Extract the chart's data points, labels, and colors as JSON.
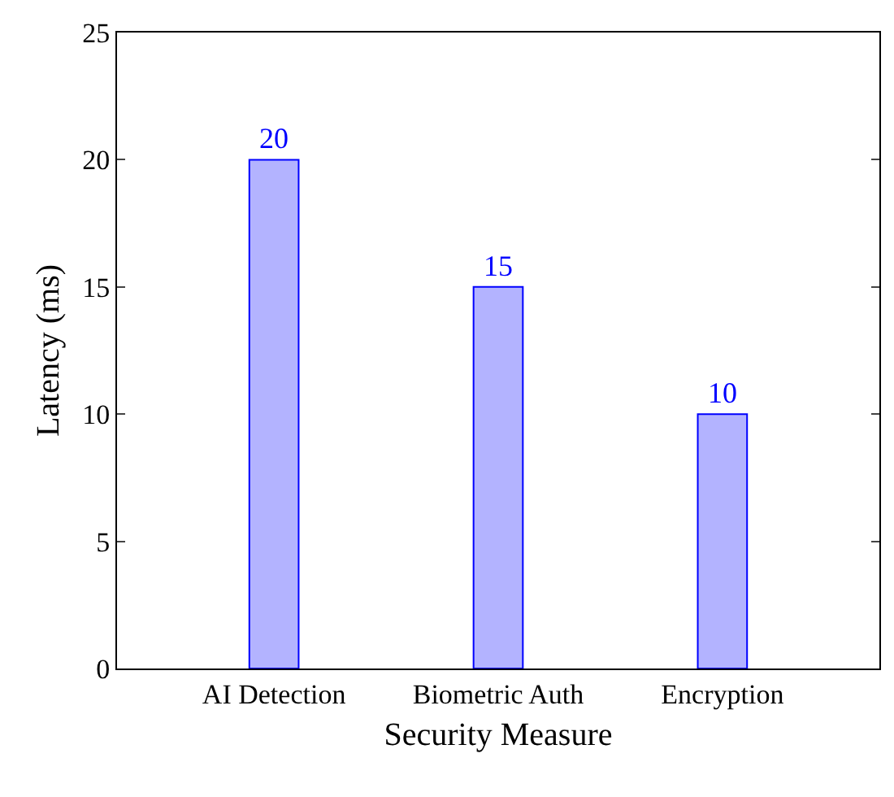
{
  "chart_data": {
    "type": "bar",
    "xlabel": "Security Measure",
    "ylabel": "Latency (ms)",
    "categories": [
      "AI Detection",
      "Biometric Auth",
      "Encryption"
    ],
    "values": [
      20,
      15,
      10
    ],
    "color": "#b3b3ff",
    "ylim": [
      0,
      25
    ],
    "yticks": [
      0,
      5,
      10,
      15,
      20,
      25
    ],
    "data_labels": true
  }
}
